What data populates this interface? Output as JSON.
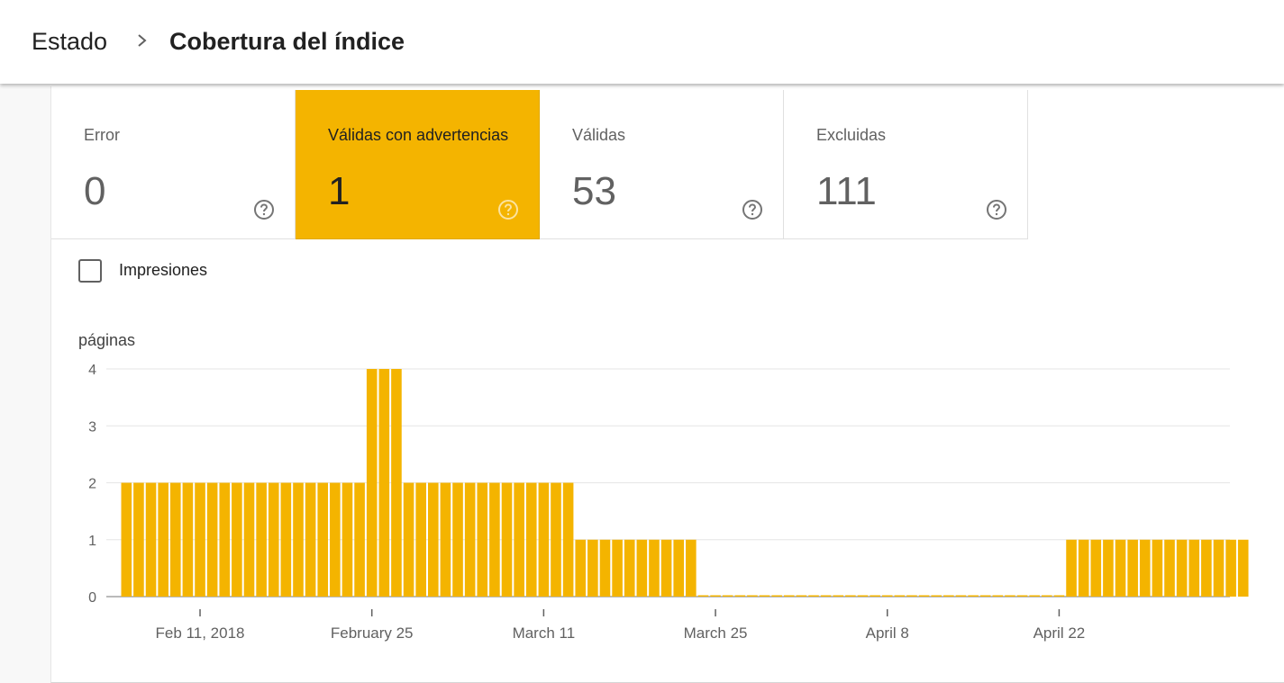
{
  "breadcrumb": {
    "root": "Estado",
    "separator_icon": "chevron-right-icon",
    "title": "Cobertura del índice"
  },
  "tiles": [
    {
      "label": "Error",
      "value": "0",
      "selected": false
    },
    {
      "label": "Válidas con advertencias",
      "value": "1",
      "selected": true
    },
    {
      "label": "Válidas",
      "value": "53",
      "selected": false
    },
    {
      "label": "Excluidas",
      "value": "111",
      "selected": false
    }
  ],
  "impressions_checkbox": {
    "label": "Impresiones",
    "checked": false
  },
  "colors": {
    "accent": "#f4b400"
  },
  "chart_data": {
    "type": "bar",
    "ylabel": "páginas",
    "xlabel": "",
    "ylim": [
      0,
      4
    ],
    "yticks": [
      "0",
      "1",
      "2",
      "3",
      "4"
    ],
    "grid": true,
    "xtick_labels": [
      "Feb 11, 2018",
      "February 25",
      "March 11",
      "March 25",
      "April 8",
      "April 22"
    ],
    "start_date": "Feb 5, 2018",
    "end_date": "May 4, 2018",
    "values": [
      2,
      2,
      2,
      2,
      2,
      2,
      2,
      2,
      2,
      2,
      2,
      2,
      2,
      2,
      2,
      2,
      2,
      2,
      2,
      2,
      4,
      4,
      4,
      2,
      2,
      2,
      2,
      2,
      2,
      2,
      2,
      2,
      2,
      2,
      2,
      2,
      2,
      1,
      1,
      1,
      1,
      1,
      1,
      1,
      1,
      1,
      1,
      0,
      0,
      0,
      0,
      0,
      0,
      0,
      0,
      0,
      0,
      0,
      0,
      0,
      0,
      0,
      0,
      0,
      0,
      0,
      0,
      0,
      0,
      0,
      0,
      0,
      0,
      0,
      0,
      0,
      0,
      1,
      1,
      1,
      1,
      1,
      1,
      1,
      1,
      1,
      1,
      1,
      1,
      1,
      1,
      1
    ]
  }
}
